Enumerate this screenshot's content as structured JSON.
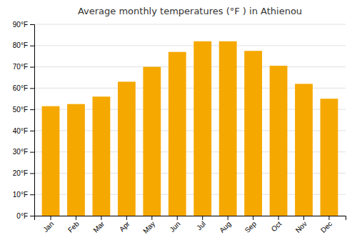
{
  "chart_data": {
    "type": "bar",
    "title": "Average monthly temperatures (°F ) in Athienou",
    "categories": [
      "Jan",
      "Feb",
      "Mar",
      "Apr",
      "May",
      "Jun",
      "Jul",
      "Aug",
      "Sep",
      "Oct",
      "Nov",
      "Dec"
    ],
    "values": [
      51.5,
      52.5,
      56,
      63,
      70,
      77,
      82,
      82,
      77.5,
      70.5,
      62,
      55
    ],
    "color": "#F5A800",
    "ylim": [
      0,
      90
    ],
    "yticks": [
      {
        "value": 0,
        "label": "0°F"
      },
      {
        "value": 10,
        "label": "10°F"
      },
      {
        "value": 20,
        "label": "20°F"
      },
      {
        "value": 30,
        "label": "30°F"
      },
      {
        "value": 40,
        "label": "40°F"
      },
      {
        "value": 50,
        "label": "50°F"
      },
      {
        "value": 60,
        "label": "60°F"
      },
      {
        "value": 70,
        "label": "70°F"
      },
      {
        "value": 80,
        "label": "80°F"
      },
      {
        "value": 90,
        "label": "90°F"
      }
    ],
    "grid": true
  }
}
